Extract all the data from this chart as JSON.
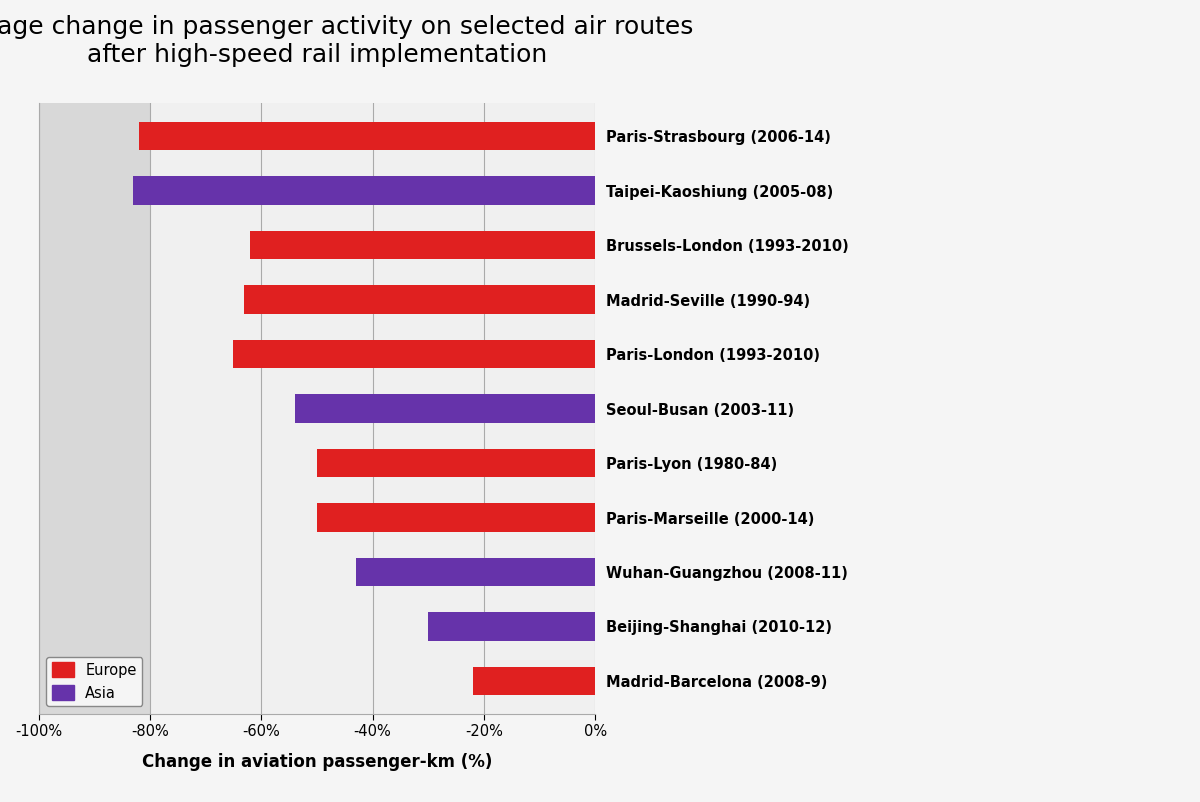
{
  "title": "Average change in passenger activity on selected air routes\nafter high-speed rail implementation",
  "xlabel": "Change in aviation passenger-km (%)",
  "labels": [
    "Paris-Strasbourg (2006-14)",
    "Taipei-Kaoshiung (2005-08)",
    "Brussels-London (1993-2010)",
    "Madrid-Seville (1990-94)",
    "Paris-London (1993-2010)",
    "Seoul-Busan (2003-11)",
    "Paris-Lyon (1980-84)",
    "Paris-Marseille (2000-14)",
    "Wuhan-Guangzhou (2008-11)",
    "Beijing-Shanghai (2010-12)",
    "Madrid-Barcelona (2008-9)"
  ],
  "values": [
    -82,
    -83,
    -62,
    -63,
    -65,
    -54,
    -50,
    -50,
    -43,
    -30,
    -22
  ],
  "colors": [
    "#e02020",
    "#6633aa",
    "#e02020",
    "#e02020",
    "#e02020",
    "#6633aa",
    "#e02020",
    "#e02020",
    "#6633aa",
    "#6633aa",
    "#e02020"
  ],
  "region": [
    "Europe",
    "Asia",
    "Europe",
    "Europe",
    "Europe",
    "Asia",
    "Europe",
    "Europe",
    "Asia",
    "Asia",
    "Europe"
  ],
  "xlim": [
    -100,
    0
  ],
  "xticks": [
    -100,
    -80,
    -60,
    -40,
    -20,
    0
  ],
  "xticklabels": [
    "-100%",
    "-80%",
    "-60%",
    "-40%",
    "-20%",
    "0%"
  ],
  "bar_height": 0.52,
  "bg_color_left": "#d8d8d8",
  "bg_color_right": "#f0f0f0",
  "plot_bg_color": "#f5f5f5",
  "fig_bg_color": "#f5f5f5",
  "europe_color": "#e02020",
  "asia_color": "#6633aa",
  "title_fontsize": 18,
  "label_fontsize": 10.5,
  "tick_fontsize": 10.5,
  "xlabel_fontsize": 12,
  "gray_boundary": -80
}
